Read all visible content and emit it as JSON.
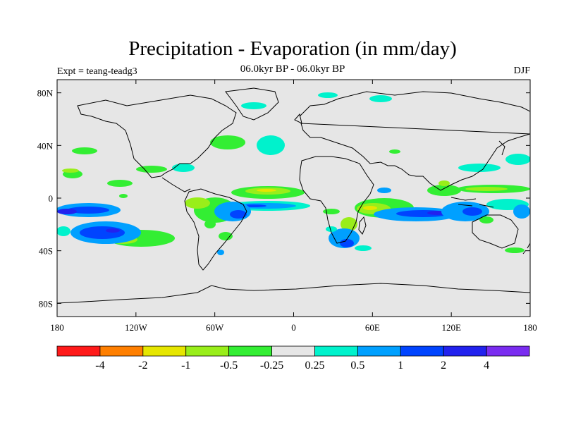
{
  "title": "Precipitation - Evaporation (in mm/day)",
  "subtitle": "06.0kyr BP - 06.0kyr BP",
  "experiment": "Expt = teang-teadg3",
  "season": "DJF",
  "axes": {
    "y_ticks": [
      "80N",
      "40N",
      "0",
      "40S",
      "80S"
    ],
    "y_values": [
      80,
      40,
      0,
      -40,
      -80
    ],
    "x_ticks": [
      "180",
      "120W",
      "60W",
      "0",
      "60E",
      "120E",
      "180"
    ],
    "x_values": [
      -180,
      -120,
      -60,
      0,
      60,
      120,
      180
    ],
    "lon_range": [
      -180,
      180
    ],
    "lat_range": [
      -90,
      90
    ]
  },
  "colorbar": {
    "colors": [
      "#ff1a1a",
      "#ff7f00",
      "#e6e600",
      "#99ee1a",
      "#33ee33",
      "#e6e6e6",
      "#00f2cc",
      "#00a0ff",
      "#0044ff",
      "#2222ee",
      "#7a2cf0"
    ],
    "labels": [
      "-4",
      "-2",
      "-1",
      "-0.5",
      "-0.25",
      "0.25",
      "0.5",
      "1",
      "2",
      "4"
    ]
  },
  "map": {
    "ocean_color": "#e6e6e6",
    "coast_color": "#000000"
  }
}
